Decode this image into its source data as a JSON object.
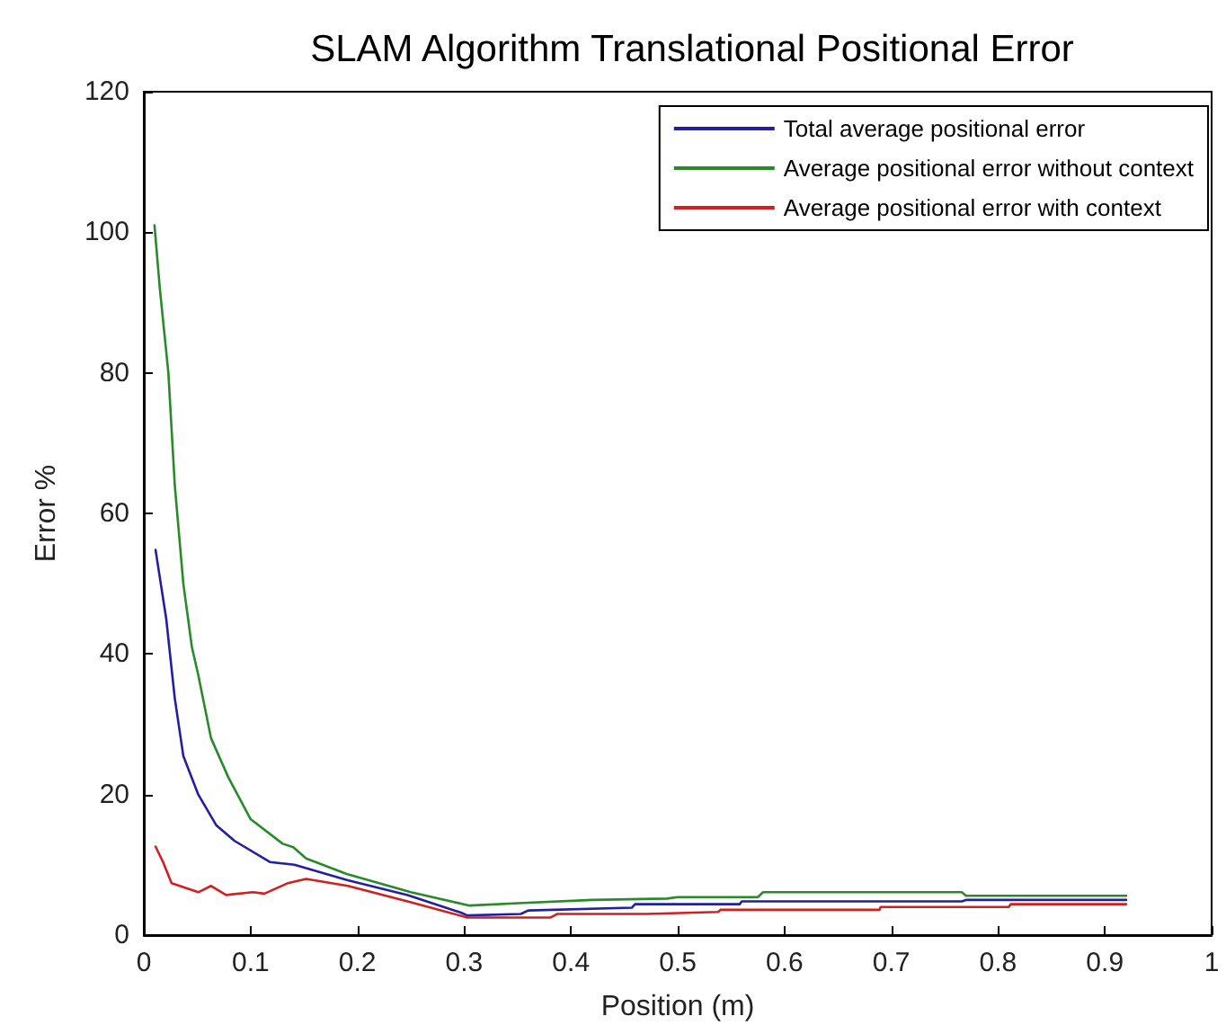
{
  "chart_data": {
    "type": "line",
    "title": "SLAM Algorithm Translational Positional Error",
    "xlabel": "Position (m)",
    "ylabel": "Error %",
    "xlim": [
      0,
      1
    ],
    "xticks": [
      0,
      0.1,
      0.2,
      0.3,
      0.4,
      0.5,
      0.6,
      0.7,
      0.8,
      0.9,
      1
    ],
    "ylim": [
      0,
      120
    ],
    "yticks": [
      0,
      20,
      40,
      60,
      80,
      100,
      120
    ],
    "grid": false,
    "legend": "top right",
    "marker": "none",
    "line_style": "solid",
    "series": [
      {
        "name": "Total average positional error",
        "color": "#2020a0",
        "x": [
          0.011,
          0.021,
          0.029,
          0.037,
          0.051,
          0.068,
          0.085,
          0.118,
          0.141,
          0.191,
          0.247,
          0.297,
          0.303,
          0.353,
          0.36,
          0.457,
          0.46,
          0.558,
          0.56,
          0.766,
          0.77,
          0.92
        ],
        "values": [
          54.8,
          45,
          33.7,
          25.5,
          20,
          15.6,
          13.4,
          10.4,
          10,
          7.8,
          5.7,
          3.2,
          2.8,
          3,
          3.5,
          3.9,
          4.4,
          4.4,
          4.8,
          4.8,
          5,
          5
        ]
      },
      {
        "name": "Average positional error without context",
        "color": "#2a8a2a",
        "x": [
          0.01,
          0.015,
          0.023,
          0.029,
          0.033,
          0.037,
          0.045,
          0.051,
          0.063,
          0.079,
          0.1,
          0.13,
          0.14,
          0.152,
          0.19,
          0.25,
          0.305,
          0.36,
          0.42,
          0.49,
          0.5,
          0.575,
          0.58,
          0.766,
          0.77,
          0.92
        ],
        "values": [
          101,
          92,
          80,
          64,
          57,
          50,
          41,
          37,
          28,
          22.5,
          16.5,
          13,
          12.5,
          10.9,
          8.7,
          6.1,
          4.2,
          4.6,
          5,
          5.2,
          5.4,
          5.4,
          6.1,
          6.1,
          5.6,
          5.6
        ]
      },
      {
        "name": "Average positional error with context",
        "color": "#d02020",
        "x": [
          0.011,
          0.018,
          0.026,
          0.051,
          0.063,
          0.077,
          0.102,
          0.113,
          0.135,
          0.152,
          0.191,
          0.247,
          0.303,
          0.381,
          0.387,
          0.47,
          0.538,
          0.54,
          0.689,
          0.69,
          0.81,
          0.812,
          0.92
        ],
        "values": [
          12.6,
          10.4,
          7.4,
          6.1,
          7,
          5.7,
          6.1,
          5.9,
          7.4,
          8,
          7,
          4.8,
          2.5,
          2.5,
          3,
          3,
          3.3,
          3.6,
          3.6,
          4,
          4,
          4.4,
          4.4
        ]
      }
    ]
  }
}
